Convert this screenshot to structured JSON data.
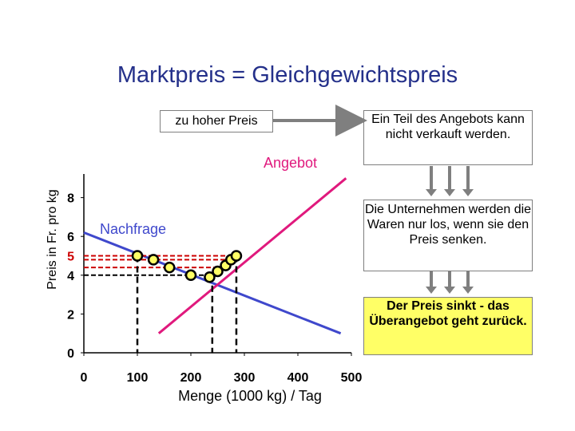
{
  "title": "Marktpreis = Gleichgewichtspreis",
  "labels": {
    "too_high": "zu hoher Preis",
    "box_top": "Ein Teil des Angebots kann nicht verkauft werden.",
    "box_mid": "Die Unternehmen werden die Waren nur los, wenn sie den Preis senken.",
    "box_low": "Der Preis sinkt - das Überangebot geht zurück.",
    "supply": "Angebot",
    "demand": "Nachfrage"
  },
  "colors": {
    "title": "#24308a",
    "supply": "#e0197d",
    "demand": "#3f48cc",
    "price_marker": "#cc0000",
    "highlight_box": "#ffff66",
    "point_fill": "#ffff66"
  },
  "chart_data": {
    "type": "line",
    "xlabel": "Menge (1000 kg) / Tag",
    "ylabel": "Preis in Fr. pro kg",
    "xlim": [
      0,
      500
    ],
    "ylim": [
      0,
      9
    ],
    "x_ticks": [
      "0",
      "100",
      "200",
      "300",
      "400",
      "500"
    ],
    "y_ticks": [
      "0",
      "2",
      "4",
      "6",
      "8"
    ],
    "highlight_tick": "5",
    "grid": false,
    "series": [
      {
        "name": "Angebot",
        "x": [
          140,
          490
        ],
        "y": [
          1.0,
          9.0
        ]
      },
      {
        "name": "Nachfrage",
        "x": [
          0,
          480
        ],
        "y": [
          6.2,
          1.0
        ]
      }
    ],
    "price_levels": [
      4.0,
      4.4,
      4.8,
      5.0
    ],
    "demand_points": [
      {
        "x": 100,
        "y": 5.0
      },
      {
        "x": 130,
        "y": 4.8
      },
      {
        "x": 160,
        "y": 4.4
      },
      {
        "x": 200,
        "y": 4.0
      },
      {
        "x": 235,
        "y": 3.9
      }
    ],
    "supply_points": [
      {
        "x": 250,
        "y": 4.2
      },
      {
        "x": 265,
        "y": 4.5
      },
      {
        "x": 275,
        "y": 4.8
      },
      {
        "x": 285,
        "y": 5.0
      }
    ],
    "quantity_drops": [
      100,
      240,
      285
    ]
  }
}
